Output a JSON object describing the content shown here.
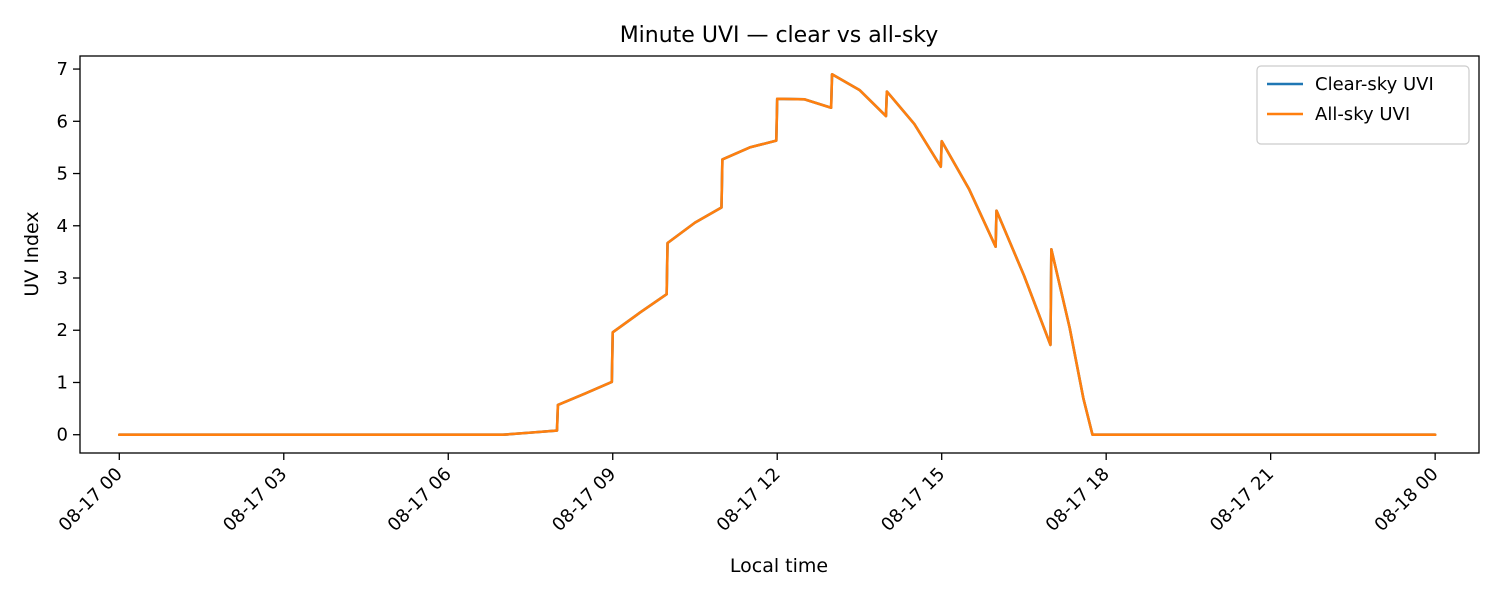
{
  "chart_data": {
    "type": "line",
    "title": "Minute UVI — clear vs all-sky",
    "xlabel": "Local time",
    "ylabel": "UV Index",
    "xlim": [
      "2024-08-16 23:17",
      "2024-08-18 00:48"
    ],
    "ylim": [
      -0.35,
      7.25
    ],
    "x_ticks": [
      "08-17 00",
      "08-17 03",
      "08-17 06",
      "08-17 09",
      "08-17 12",
      "08-17 15",
      "08-17 18",
      "08-17 21",
      "08-18 00"
    ],
    "y_ticks": [
      0,
      1,
      2,
      3,
      4,
      5,
      6,
      7
    ],
    "grid": false,
    "legend_position": "upper right",
    "series": [
      {
        "name": "Clear-sky UVI",
        "color": "#1f77b4",
        "points": [
          [
            "2024-08-17 00:00",
            0
          ],
          [
            "2024-08-17 07:00",
            0
          ],
          [
            "2024-08-17 07:30",
            0.04
          ],
          [
            "2024-08-17 07:59",
            0.08
          ],
          [
            "2024-08-17 08:00",
            0.57
          ],
          [
            "2024-08-17 08:30",
            0.79
          ],
          [
            "2024-08-17 08:59",
            1.01
          ],
          [
            "2024-08-17 09:00",
            1.96
          ],
          [
            "2024-08-17 09:30",
            2.34
          ],
          [
            "2024-08-17 09:59",
            2.69
          ],
          [
            "2024-08-17 10:00",
            3.67
          ],
          [
            "2024-08-17 10:30",
            4.06
          ],
          [
            "2024-08-17 10:59",
            4.35
          ],
          [
            "2024-08-17 11:00",
            5.27
          ],
          [
            "2024-08-17 11:30",
            5.5
          ],
          [
            "2024-08-17 11:59",
            5.63
          ],
          [
            "2024-08-17 12:00",
            6.43
          ],
          [
            "2024-08-17 12:30",
            6.42
          ],
          [
            "2024-08-17 12:59",
            6.26
          ],
          [
            "2024-08-17 13:00",
            6.9
          ],
          [
            "2024-08-17 13:30",
            6.6
          ],
          [
            "2024-08-17 13:59",
            6.1
          ],
          [
            "2024-08-17 14:00",
            6.57
          ],
          [
            "2024-08-17 14:30",
            5.95
          ],
          [
            "2024-08-17 14:59",
            5.13
          ],
          [
            "2024-08-17 15:00",
            5.62
          ],
          [
            "2024-08-17 15:30",
            4.7
          ],
          [
            "2024-08-17 15:59",
            3.6
          ],
          [
            "2024-08-17 16:00",
            4.29
          ],
          [
            "2024-08-17 16:30",
            3.05
          ],
          [
            "2024-08-17 16:59",
            1.72
          ],
          [
            "2024-08-17 17:00",
            3.55
          ],
          [
            "2024-08-17 17:20",
            2.05
          ],
          [
            "2024-08-17 17:35",
            0.7
          ],
          [
            "2024-08-17 17:45",
            0
          ],
          [
            "2024-08-18 00:00",
            0
          ]
        ]
      },
      {
        "name": "All-sky UVI",
        "color": "#ff7f0e",
        "points": [
          [
            "2024-08-17 00:00",
            0
          ],
          [
            "2024-08-17 07:00",
            0
          ],
          [
            "2024-08-17 07:30",
            0.04
          ],
          [
            "2024-08-17 07:59",
            0.08
          ],
          [
            "2024-08-17 08:00",
            0.57
          ],
          [
            "2024-08-17 08:30",
            0.79
          ],
          [
            "2024-08-17 08:59",
            1.01
          ],
          [
            "2024-08-17 09:00",
            1.96
          ],
          [
            "2024-08-17 09:30",
            2.34
          ],
          [
            "2024-08-17 09:59",
            2.69
          ],
          [
            "2024-08-17 10:00",
            3.67
          ],
          [
            "2024-08-17 10:30",
            4.06
          ],
          [
            "2024-08-17 10:59",
            4.35
          ],
          [
            "2024-08-17 11:00",
            5.27
          ],
          [
            "2024-08-17 11:30",
            5.5
          ],
          [
            "2024-08-17 11:59",
            5.63
          ],
          [
            "2024-08-17 12:00",
            6.43
          ],
          [
            "2024-08-17 12:30",
            6.42
          ],
          [
            "2024-08-17 12:59",
            6.26
          ],
          [
            "2024-08-17 13:00",
            6.9
          ],
          [
            "2024-08-17 13:30",
            6.6
          ],
          [
            "2024-08-17 13:59",
            6.1
          ],
          [
            "2024-08-17 14:00",
            6.57
          ],
          [
            "2024-08-17 14:30",
            5.95
          ],
          [
            "2024-08-17 14:59",
            5.13
          ],
          [
            "2024-08-17 15:00",
            5.62
          ],
          [
            "2024-08-17 15:30",
            4.7
          ],
          [
            "2024-08-17 15:59",
            3.6
          ],
          [
            "2024-08-17 16:00",
            4.29
          ],
          [
            "2024-08-17 16:30",
            3.05
          ],
          [
            "2024-08-17 16:59",
            1.72
          ],
          [
            "2024-08-17 17:00",
            3.55
          ],
          [
            "2024-08-17 17:20",
            2.05
          ],
          [
            "2024-08-17 17:35",
            0.7
          ],
          [
            "2024-08-17 17:45",
            0
          ],
          [
            "2024-08-18 00:00",
            0
          ]
        ]
      }
    ]
  }
}
